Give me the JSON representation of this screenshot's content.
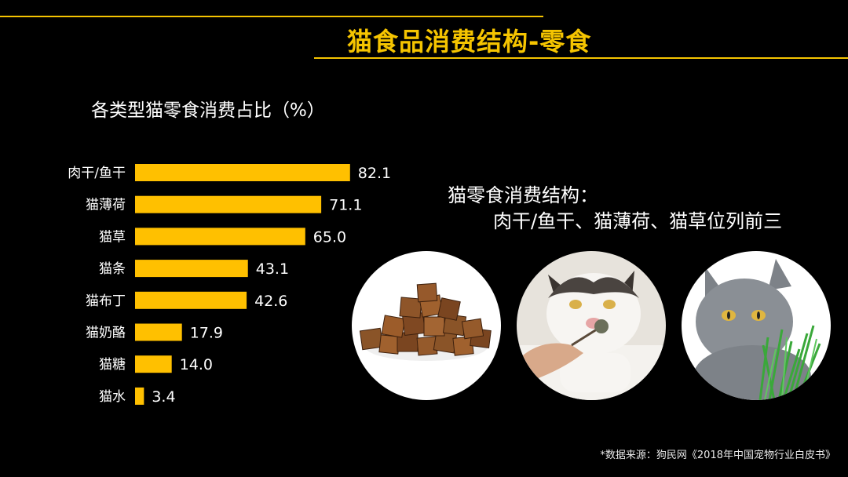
{
  "header": {
    "title": "猫食品消费结构-零食"
  },
  "chart_data": {
    "type": "bar",
    "orientation": "horizontal",
    "title": "各类型猫零食消费占比（%）",
    "categories": [
      "肉干/鱼干",
      "猫薄荷",
      "猫草",
      "猫条",
      "猫布丁",
      "猫奶酪",
      "猫糖",
      "猫水"
    ],
    "values": [
      82.1,
      71.1,
      65.0,
      43.1,
      42.6,
      17.9,
      14.0,
      3.4
    ],
    "value_labels": [
      "82.1",
      "71.1",
      "65.0",
      "43.1",
      "42.6",
      "17.9",
      "14.0",
      "3.4"
    ],
    "xlim": [
      0,
      100
    ],
    "grid": false,
    "bar_color": "#ffc000"
  },
  "summary": {
    "line1": "猫零食消费结构：",
    "line2": "肉干/鱼干、猫薄荷、猫草位列前三"
  },
  "photos": [
    {
      "icon": "jerky-photo"
    },
    {
      "icon": "cat-catnip-photo"
    },
    {
      "icon": "cat-grass-photo"
    }
  ],
  "source": "*数据来源：狗民网《2018年中国宠物行业白皮书》",
  "colors": {
    "accent": "#f5c400",
    "background": "#000000",
    "text": "#ffffff"
  }
}
